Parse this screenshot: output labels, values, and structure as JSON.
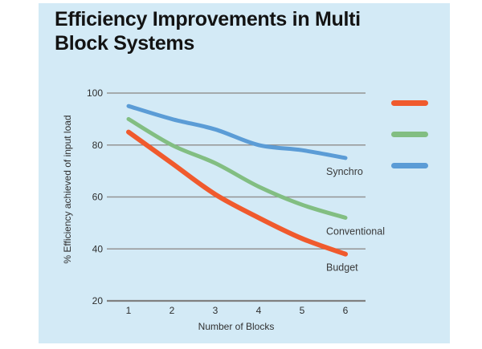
{
  "page": {
    "background": "#ffffff",
    "panel_background": "#d3eaf6"
  },
  "header": {
    "title": "Efficiency Improvements in Multi Block Systems"
  },
  "chart_data": {
    "type": "line",
    "title": "Efficiency Improvements in Multi Block Systems",
    "xlabel": "Number of Blocks",
    "ylabel": "% Efficiency achieved of input load",
    "x": [
      1,
      2,
      3,
      4,
      5,
      6
    ],
    "xlim": [
      1,
      6
    ],
    "ylim": [
      20,
      100
    ],
    "yticks": [
      100,
      80,
      60,
      40,
      20
    ],
    "grid": "horizontal-only",
    "gridline_color": "#949494",
    "axisline_color": "#808080",
    "tick_text_color": "#2e2e2e",
    "series_label_color": "#3a3a3a",
    "legend_position": "right-outside",
    "legend_order_top_to_bottom": [
      "Budget",
      "Conventional",
      "Synchro"
    ],
    "series": [
      {
        "name": "Budget",
        "color": "#f05a2d",
        "stroke_width": 6,
        "values": [
          85,
          73,
          61,
          52,
          44,
          38
        ]
      },
      {
        "name": "Conventional",
        "color": "#82be82",
        "stroke_width": 5,
        "values": [
          90,
          80,
          73,
          64,
          57,
          52
        ]
      },
      {
        "name": "Synchro",
        "color": "#5b9cd6",
        "stroke_width": 5,
        "values": [
          95,
          90,
          86,
          80,
          78,
          75
        ]
      }
    ]
  }
}
